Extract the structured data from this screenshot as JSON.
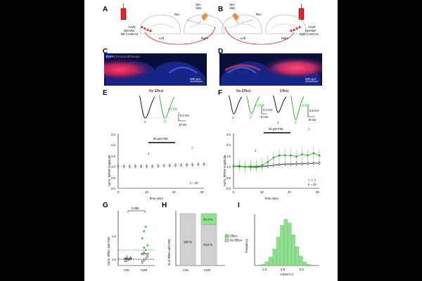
{
  "panels": [
    "A",
    "B",
    "C",
    "D",
    "E",
    "F",
    "G",
    "H",
    "I"
  ],
  "panel_a": {
    "injection": [
      "AAV9",
      "injection",
      "left CA3/CA2"
    ],
    "rec": "Rec.",
    "stim": [
      "Opt.",
      "Stim."
    ],
    "left": "Left",
    "right": "Right"
  },
  "panel_b": {
    "injection": [
      "AAV9",
      "injection",
      "right CA3/CA2"
    ],
    "rec": "Rec.",
    "stim": [
      "Opt.",
      "Stim."
    ],
    "left": "Left",
    "right": "Right"
  },
  "panel_c": {
    "legend_dapi": "DAPI",
    "legend_marker": "Chronos-tdTomato",
    "scale": "200 µm"
  },
  "panel_d": {
    "scale": "200 µm"
  },
  "panel_e": {
    "title": "No Effect",
    "fsk_label": "+ FSK",
    "trace_labels": [
      "1",
      "2"
    ],
    "scale_mv": "0.2 mV",
    "scale_ms": "10 ms",
    "drug_bar": "50 µM FSK",
    "ylabel": "Norm. fEPSP Amplitude",
    "xlabel": "Time (min)",
    "n": "n = 20",
    "yticks": [
      "0.0",
      "0.5",
      "1.0",
      "1.5",
      "2.0",
      "2.5"
    ],
    "xticks": [
      "0",
      "10",
      "20",
      "30"
    ]
  },
  "panel_f": {
    "title_left": "No Effect",
    "title_right": "Effect",
    "fsk_label": "+ FSK",
    "trace_labels": [
      "1",
      "2"
    ],
    "scale_mv_left": "0.2 mV",
    "scale_ms_left": "10 ms",
    "scale_mv_right": "0.5 mV",
    "scale_ms_right": "10 ms",
    "drug_bar": "50 µM FSK",
    "ylabel": "Norm. fEPSP Amplitude",
    "xlabel": "Time (min)",
    "n_effect": "n = 6",
    "n_total": "n = 22",
    "yticks": [
      "0.0",
      "0.5",
      "1.0",
      "1.5",
      "2.0",
      "2.5"
    ],
    "xticks": [
      "0",
      "10",
      "20",
      "30"
    ]
  },
  "panel_g": {
    "ylabel": "Norm. Effect size FSK",
    "pvalue": "0.085",
    "yticks": [
      "1.0",
      "1.5"
    ],
    "categories": [
      "COL",
      "COR"
    ]
  },
  "panel_h": {
    "ylabel": "% of Effect with FSK",
    "categories": [
      "COL",
      "COR"
    ],
    "col_label": "100 %",
    "cor_no_effect_label": "78.6 %",
    "cor_effect_label": "21.4 %",
    "legend": [
      "Effect",
      "No Effect"
    ]
  },
  "panel_i": {
    "ylabel": "Frequency",
    "xlabel": "Cohen's d",
    "xticks": [
      "-1.0",
      "-0.5",
      "0.0"
    ]
  },
  "colors": {
    "green": "#2eaa2e",
    "light_green": "#8fe08f",
    "red": "#e8232a",
    "blue": "#1a2a9a",
    "gray": "#d0d0d0"
  },
  "chart_data": [
    {
      "type": "scatter",
      "panel": "E",
      "x": [
        0,
        2,
        4,
        6,
        8,
        10,
        12,
        14,
        16,
        18,
        20,
        22,
        24,
        26,
        28,
        30
      ],
      "y": [
        1.0,
        1.0,
        0.99,
        1.01,
        1.0,
        1.0,
        1.0,
        1.02,
        1.03,
        1.04,
        1.05,
        1.06,
        1.07,
        1.08,
        1.09,
        1.1
      ],
      "xlabel": "Time (min)",
      "ylabel": "Norm. fEPSP Amplitude",
      "xlim": [
        0,
        30
      ],
      "ylim": [
        0,
        2.5
      ]
    },
    {
      "type": "line",
      "panel": "F",
      "x": [
        0,
        2,
        4,
        6,
        8,
        10,
        12,
        14,
        16,
        18,
        20,
        22,
        24,
        26,
        28,
        30
      ],
      "series": [
        {
          "name": "n = 22",
          "values": [
            1.0,
            1.0,
            0.98,
            0.97,
            0.96,
            1.0,
            1.02,
            1.05,
            1.08,
            1.1,
            1.1,
            1.12,
            1.12,
            1.13,
            1.15,
            1.15
          ]
        },
        {
          "name": "n = 6",
          "values": [
            1.0,
            1.02,
            0.98,
            1.0,
            1.0,
            1.05,
            1.2,
            1.4,
            1.5,
            1.5,
            1.5,
            1.45,
            1.55,
            1.5,
            1.6,
            1.5
          ]
        }
      ],
      "xlabel": "Time (min)",
      "ylabel": "Norm. fEPSP Amplitude",
      "xlim": [
        0,
        30
      ],
      "ylim": [
        0,
        2.5
      ]
    },
    {
      "type": "bar",
      "panel": "H",
      "categories": [
        "COL",
        "COR"
      ],
      "series": [
        {
          "name": "No Effect",
          "values": [
            100,
            78.6
          ]
        },
        {
          "name": "Effect",
          "values": [
            0,
            21.4
          ]
        }
      ],
      "ylabel": "% of Effect with FSK",
      "ylim": [
        0,
        100
      ]
    },
    {
      "type": "bar",
      "panel": "I",
      "categories": [
        "-1.2",
        "-1.1",
        "-1.0",
        "-0.9",
        "-0.8",
        "-0.7",
        "-0.6",
        "-0.5",
        "-0.4",
        "-0.3",
        "-0.2",
        "-0.1",
        "0.0",
        "0.1",
        "0.2"
      ],
      "values": [
        1,
        3,
        8,
        18,
        35,
        60,
        85,
        98,
        90,
        65,
        40,
        20,
        8,
        3,
        1
      ],
      "xlabel": "Cohen's d",
      "ylabel": "Frequency"
    }
  ]
}
